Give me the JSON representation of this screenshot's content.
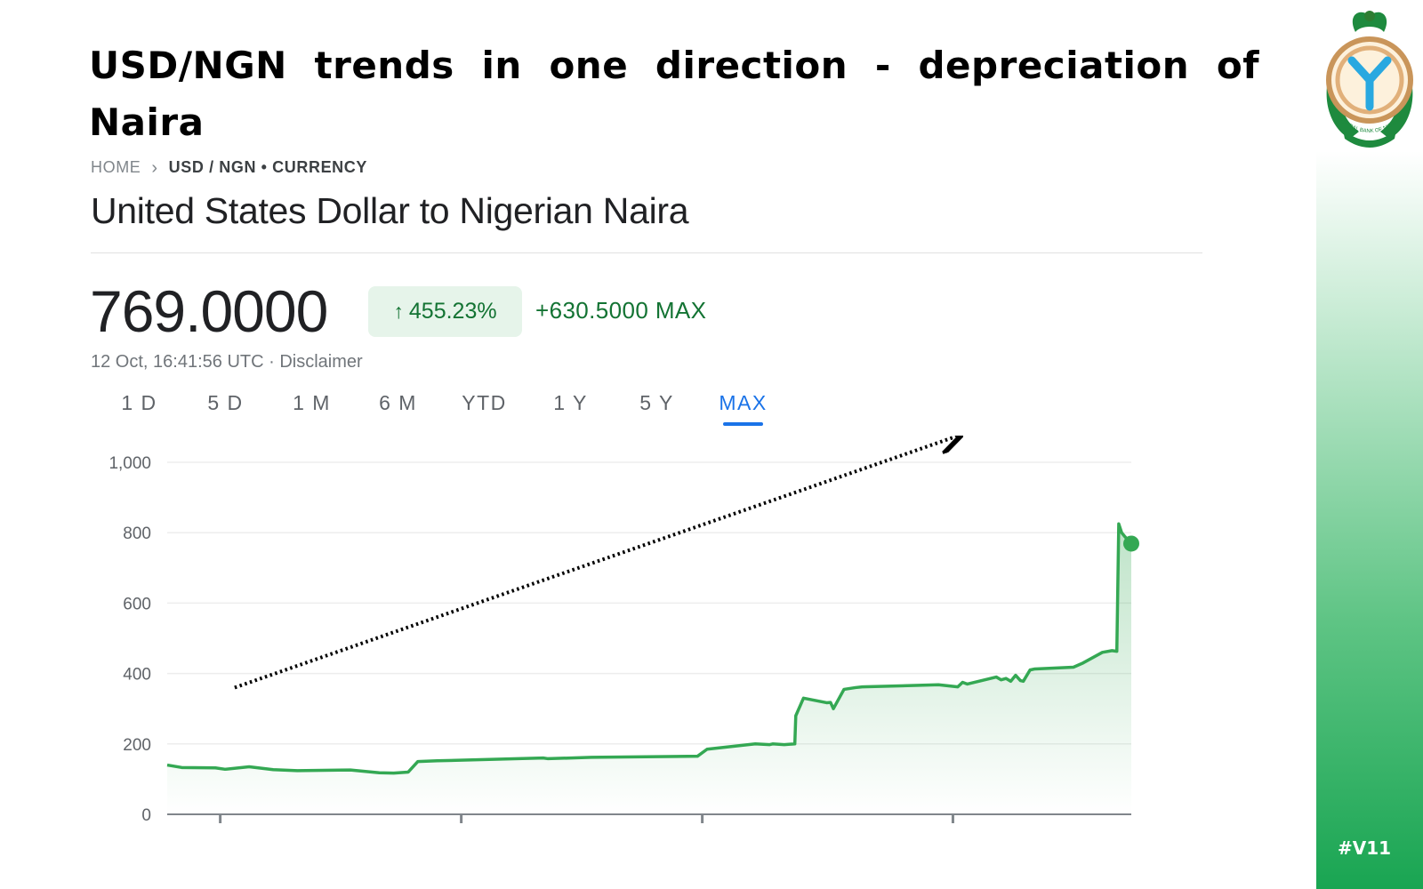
{
  "slide": {
    "title": "USD/NGN trends in one direction - depreciation of Naira",
    "tag": "#V11"
  },
  "logo": {
    "text": "CENTRAL BANK OF NIGERIA"
  },
  "breadcrumb": {
    "home": "HOME",
    "current": "USD / NGN • CURRENCY"
  },
  "page_title": "United States Dollar to Nigerian Naira",
  "quote": {
    "price": "769.0000",
    "pct_change": "455.23%",
    "abs_change": "+630.5000 MAX",
    "timestamp": "12 Oct, 16:41:56 UTC · Disclaimer"
  },
  "range_tabs": [
    {
      "label": "1 D",
      "active": false
    },
    {
      "label": "5 D",
      "active": false
    },
    {
      "label": "1 M",
      "active": false
    },
    {
      "label": "6 M",
      "active": false
    },
    {
      "label": "YTD",
      "active": false
    },
    {
      "label": "1 Y",
      "active": false
    },
    {
      "label": "5 Y",
      "active": false
    },
    {
      "label": "MAX",
      "active": true
    }
  ],
  "colors": {
    "line": "#34a853",
    "positive": "#137333",
    "active_tab": "#1a73e8",
    "trend_arrow": "#000000"
  },
  "chart_data": {
    "type": "area",
    "title": "",
    "xlabel": "",
    "ylabel": "",
    "ylim": [
      0,
      1000
    ],
    "yticks": [
      0,
      200,
      400,
      600,
      800,
      1000
    ],
    "yticklabels": [
      "0",
      "200",
      "400",
      "600",
      "800",
      "1,000"
    ],
    "grid": true,
    "legend": "none",
    "x_range": [
      0,
      100
    ],
    "series": [
      {
        "x": [
          0,
          1.5,
          5,
          6,
          8.5,
          11,
          13.5,
          19,
          22,
          23.5,
          25,
          26,
          28,
          39,
          39.5,
          44,
          55,
          56,
          61,
          62.5,
          62.8,
          64,
          65.1,
          65.2,
          66,
          68.4,
          68.8,
          69.1,
          70.2,
          71.4,
          72.1,
          80,
          82,
          82.5,
          83,
          86,
          86.5,
          87,
          87.5,
          88,
          88.5,
          88.8,
          89.5,
          90,
          94,
          95,
          97,
          98,
          98.5,
          98.7,
          99,
          99.3,
          100
        ],
        "values": [
          140,
          133,
          132,
          128,
          135,
          127,
          124,
          126,
          118,
          117,
          120,
          150,
          152,
          160,
          158,
          162,
          165,
          185,
          200,
          198,
          200,
          198,
          200,
          280,
          330,
          317,
          318,
          300,
          355,
          360,
          362,
          368,
          362,
          375,
          370,
          390,
          382,
          386,
          378,
          395,
          380,
          378,
          410,
          413,
          418,
          430,
          460,
          465,
          463,
          825,
          800,
          790,
          769
        ]
      }
    ],
    "last_point": {
      "x": 100,
      "y": 769
    },
    "annotation": {
      "type": "dotted-arrow",
      "from": {
        "x": 7,
        "y": 360
      },
      "to": {
        "x": 82,
        "y": 1075
      }
    }
  }
}
